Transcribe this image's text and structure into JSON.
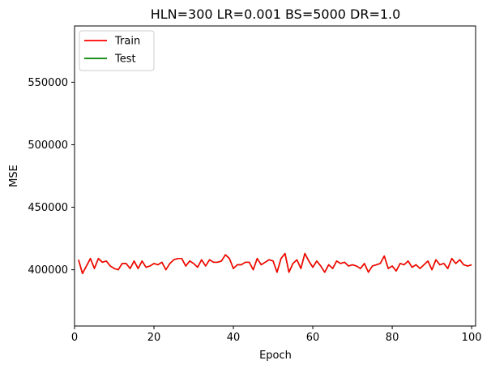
{
  "chart_data": {
    "type": "line",
    "title": "HLN=300 LR=0.001 BS=5000 DR=1.0",
    "xlabel": "Epoch",
    "ylabel": "MSE",
    "xlim": [
      0,
      101
    ],
    "ylim": [
      355000,
      595000
    ],
    "xticks": [
      0,
      20,
      40,
      60,
      80,
      100
    ],
    "yticks": [
      400000,
      450000,
      500000,
      550000
    ],
    "grid": false,
    "legend": "top-left",
    "series": [
      {
        "name": "Test",
        "color": "#008000",
        "x": [
          1,
          2,
          3,
          4,
          5,
          6,
          7,
          8,
          9,
          10,
          11,
          12,
          13,
          14,
          15,
          16,
          17,
          18,
          19,
          20,
          21,
          22,
          23,
          24,
          25,
          26,
          27,
          28,
          29,
          30,
          31,
          32,
          33,
          34,
          35,
          36,
          37,
          38,
          39,
          40,
          41,
          42,
          43,
          44,
          45,
          46,
          47,
          48,
          49,
          50,
          51,
          52,
          53,
          54,
          55,
          56,
          57,
          58,
          59,
          60,
          61,
          62,
          63,
          64,
          65,
          66,
          67,
          68,
          69,
          70,
          71,
          72,
          73,
          74,
          75,
          76,
          77,
          78,
          79,
          80,
          81,
          82,
          83,
          84,
          85,
          86,
          87,
          88,
          89,
          90,
          91,
          92,
          93,
          94,
          95,
          96,
          97,
          98,
          99,
          100
        ],
        "values": [
          408000,
          397000,
          403000,
          409000,
          401000,
          409000,
          406000,
          407000,
          403000,
          401000,
          400000,
          405000,
          405000,
          401000,
          407000,
          401000,
          407000,
          402000,
          403000,
          405000,
          404000,
          406000,
          400000,
          405000,
          408000,
          409000,
          409000,
          403000,
          407000,
          405000,
          402000,
          408000,
          403000,
          408000,
          406000,
          406000,
          407000,
          412000,
          409000,
          401000,
          404000,
          404000,
          406000,
          406000,
          400000,
          409000,
          404000,
          406000,
          408000,
          407000,
          398000,
          409000,
          413000,
          398000,
          405000,
          408000,
          401000,
          413000,
          407000,
          402000,
          407000,
          403000,
          398000,
          404000,
          401000,
          407000,
          405000,
          406000,
          403000,
          404000,
          403000,
          401000,
          405000,
          398000,
          403000,
          404000,
          405000,
          411000,
          401000,
          403000,
          399000,
          405000,
          404000,
          407000,
          402000,
          404000,
          401000,
          404000,
          407000,
          400000,
          408000,
          404000,
          405000,
          401000,
          409000,
          405000,
          408000,
          404000,
          403000,
          404000
        ]
      },
      {
        "name": "Train",
        "color": "#ff0000",
        "x": [
          1,
          2,
          3,
          4,
          5,
          6,
          7,
          8,
          9,
          10,
          11,
          12,
          13,
          14,
          15,
          16,
          17,
          18,
          19,
          20,
          21,
          22,
          23,
          24,
          25,
          26,
          27,
          28,
          29,
          30,
          31,
          32,
          33,
          34,
          35,
          36,
          37,
          38,
          39,
          40,
          41,
          42,
          43,
          44,
          45,
          46,
          47,
          48,
          49,
          50,
          51,
          52,
          53,
          54,
          55,
          56,
          57,
          58,
          59,
          60,
          61,
          62,
          63,
          64,
          65,
          66,
          67,
          68,
          69,
          70,
          71,
          72,
          73,
          74,
          75,
          76,
          77,
          78,
          79,
          80,
          81,
          82,
          83,
          84,
          85,
          86,
          87,
          88,
          89,
          90,
          91,
          92,
          93,
          94,
          95,
          96,
          97,
          98,
          99,
          100
        ],
        "values": [
          408000,
          397000,
          403000,
          409000,
          401000,
          409000,
          406000,
          407000,
          403000,
          401000,
          400000,
          405000,
          405000,
          401000,
          407000,
          401000,
          407000,
          402000,
          403000,
          405000,
          404000,
          406000,
          400000,
          405000,
          408000,
          409000,
          409000,
          403000,
          407000,
          405000,
          402000,
          408000,
          403000,
          408000,
          406000,
          406000,
          407000,
          412000,
          409000,
          401000,
          404000,
          404000,
          406000,
          406000,
          400000,
          409000,
          404000,
          406000,
          408000,
          407000,
          398000,
          409000,
          413000,
          398000,
          405000,
          408000,
          401000,
          413000,
          407000,
          402000,
          407000,
          403000,
          398000,
          404000,
          401000,
          407000,
          405000,
          406000,
          403000,
          404000,
          403000,
          401000,
          405000,
          398000,
          403000,
          404000,
          405000,
          411000,
          401000,
          403000,
          399000,
          405000,
          404000,
          407000,
          402000,
          404000,
          401000,
          404000,
          407000,
          400000,
          408000,
          404000,
          405000,
          401000,
          409000,
          405000,
          408000,
          404000,
          403000,
          404000
        ]
      }
    ],
    "legend_entries": [
      {
        "label": "Train",
        "color": "#ff0000"
      },
      {
        "label": "Test",
        "color": "#008000"
      }
    ]
  }
}
